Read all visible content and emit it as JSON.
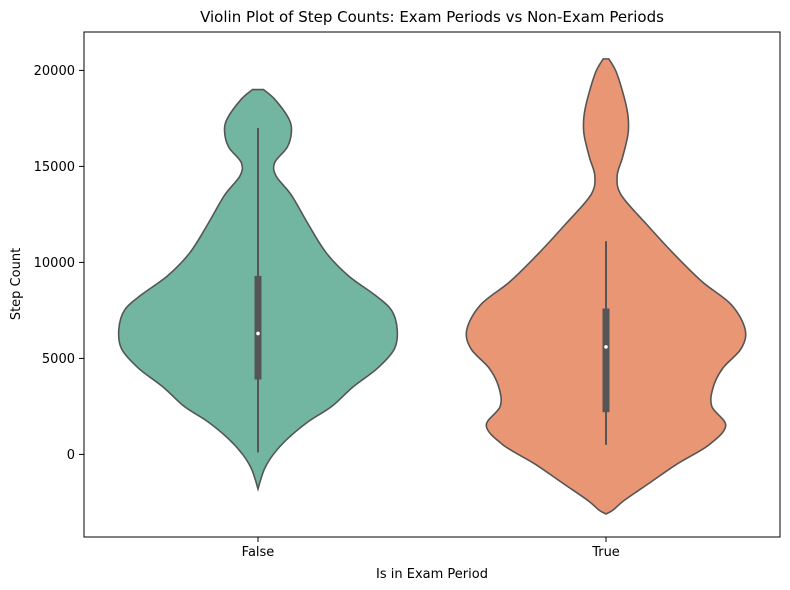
{
  "chart_data": {
    "type": "violin",
    "title": "Violin Plot of Step Counts: Exam Periods vs Non-Exam Periods",
    "xlabel": "Is in Exam Period",
    "ylabel": "Step Count",
    "ylim": [
      -4300,
      22000
    ],
    "yticks": [
      0,
      5000,
      10000,
      15000,
      20000
    ],
    "yticklabels": [
      "0",
      "5000",
      "10000",
      "15000",
      "20000"
    ],
    "categories": [
      "False",
      "True"
    ],
    "grid": false,
    "series": [
      {
        "category": "False",
        "color": "#72b6a1",
        "box": {
          "q1": 3900,
          "median": 6300,
          "q3": 9300,
          "whisker_low": 100,
          "whisker_high": 17000
        },
        "density_profile": [
          [
            19000,
            0.04
          ],
          [
            18500,
            0.12
          ],
          [
            17500,
            0.22
          ],
          [
            16800,
            0.24
          ],
          [
            16000,
            0.21
          ],
          [
            15200,
            0.12
          ],
          [
            14500,
            0.13
          ],
          [
            13500,
            0.24
          ],
          [
            12000,
            0.36
          ],
          [
            10500,
            0.49
          ],
          [
            9300,
            0.65
          ],
          [
            8300,
            0.84
          ],
          [
            7500,
            0.96
          ],
          [
            6500,
            1.0
          ],
          [
            5500,
            0.98
          ],
          [
            4500,
            0.86
          ],
          [
            3500,
            0.68
          ],
          [
            2500,
            0.53
          ],
          [
            1700,
            0.36
          ],
          [
            800,
            0.21
          ],
          [
            0,
            0.11
          ],
          [
            -700,
            0.05
          ],
          [
            -1300,
            0.02
          ],
          [
            -1800,
            0.0
          ]
        ]
      },
      {
        "category": "True",
        "color": "#e99675",
        "box": {
          "q1": 2200,
          "median": 5600,
          "q3": 7600,
          "whisker_low": 500,
          "whisker_high": 11100
        },
        "density_profile": [
          [
            20600,
            0.02
          ],
          [
            19800,
            0.08
          ],
          [
            18000,
            0.15
          ],
          [
            16800,
            0.16
          ],
          [
            15500,
            0.12
          ],
          [
            14500,
            0.08
          ],
          [
            13500,
            0.11
          ],
          [
            12000,
            0.29
          ],
          [
            10500,
            0.48
          ],
          [
            9000,
            0.69
          ],
          [
            7800,
            0.9
          ],
          [
            6500,
            1.0
          ],
          [
            5500,
            0.97
          ],
          [
            4500,
            0.84
          ],
          [
            3500,
            0.77
          ],
          [
            2500,
            0.76
          ],
          [
            1500,
            0.86
          ],
          [
            500,
            0.74
          ],
          [
            -500,
            0.51
          ],
          [
            -1500,
            0.31
          ],
          [
            -2400,
            0.13
          ],
          [
            -2900,
            0.05
          ],
          [
            -3100,
            0.0
          ]
        ]
      }
    ]
  }
}
